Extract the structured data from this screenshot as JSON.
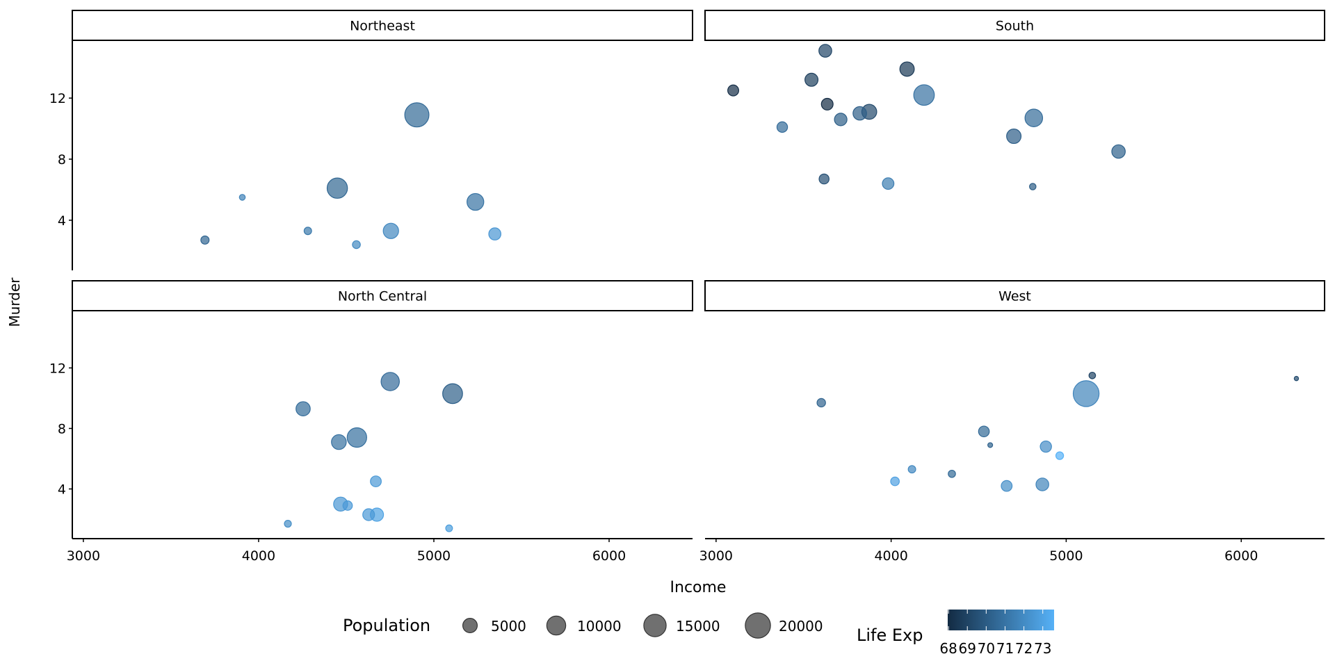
{
  "chart_data": {
    "type": "scatter",
    "xlabel": "Income",
    "ylabel": "Murder",
    "xlim": [
      2937,
      6476
    ],
    "ylim": [
      0.715,
      15.785
    ],
    "x_ticks": [
      3000,
      4000,
      5000,
      6000
    ],
    "y_ticks": [
      4,
      8,
      12
    ],
    "grid": false,
    "legend_position": "bottom",
    "alpha": 0.7,
    "size_legend": {
      "title": "Population",
      "breaks": [
        5000,
        10000,
        15000,
        20000
      ],
      "range": [
        365,
        21198
      ]
    },
    "color_legend": {
      "title": "Life Exp",
      "breaks": [
        68,
        69,
        70,
        71,
        72,
        73
      ],
      "range": [
        67.96,
        73.6
      ],
      "low": "#132B43",
      "high": "#56B1F7"
    },
    "facets": [
      {
        "name": "Northeast",
        "points": [
          {
            "income": 5348,
            "murder": 3.1,
            "population": 3100,
            "life_exp": 72.48
          },
          {
            "income": 3694,
            "murder": 2.7,
            "population": 1058,
            "life_exp": 70.39
          },
          {
            "income": 4755,
            "murder": 3.3,
            "population": 5814,
            "life_exp": 71.83
          },
          {
            "income": 4281,
            "murder": 3.3,
            "population": 812,
            "life_exp": 71.23
          },
          {
            "income": 5237,
            "murder": 5.2,
            "population": 7333,
            "life_exp": 70.93
          },
          {
            "income": 4903,
            "murder": 10.9,
            "population": 18076,
            "life_exp": 70.55
          },
          {
            "income": 4449,
            "murder": 6.1,
            "population": 11860,
            "life_exp": 70.43
          },
          {
            "income": 4558,
            "murder": 2.4,
            "population": 931,
            "life_exp": 71.9
          },
          {
            "income": 3907,
            "murder": 5.5,
            "population": 472,
            "life_exp": 71.64
          }
        ]
      },
      {
        "name": "South",
        "points": [
          {
            "income": 3624,
            "murder": 15.1,
            "population": 3615,
            "life_exp": 69.05
          },
          {
            "income": 3378,
            "murder": 10.1,
            "population": 2110,
            "life_exp": 70.66
          },
          {
            "income": 4809,
            "murder": 6.2,
            "population": 579,
            "life_exp": 70.06
          },
          {
            "income": 4815,
            "murder": 10.7,
            "population": 8277,
            "life_exp": 70.66
          },
          {
            "income": 4091,
            "murder": 13.9,
            "population": 4931,
            "life_exp": 68.54
          },
          {
            "income": 3712,
            "murder": 10.6,
            "population": 3387,
            "life_exp": 70.1
          },
          {
            "income": 3545,
            "murder": 13.2,
            "population": 3806,
            "life_exp": 68.76
          },
          {
            "income": 5299,
            "murder": 8.5,
            "population": 4122,
            "life_exp": 70.22
          },
          {
            "income": 3098,
            "murder": 12.5,
            "population": 2341,
            "life_exp": 68.09
          },
          {
            "income": 3875,
            "murder": 11.1,
            "population": 5441,
            "life_exp": 69.21
          },
          {
            "income": 3983,
            "murder": 6.4,
            "population": 2715,
            "life_exp": 71.42
          },
          {
            "income": 3635,
            "murder": 11.6,
            "population": 2816,
            "life_exp": 67.96
          },
          {
            "income": 3821,
            "murder": 11.0,
            "population": 4173,
            "life_exp": 70.11
          },
          {
            "income": 4188,
            "murder": 12.2,
            "population": 12237,
            "life_exp": 70.9
          },
          {
            "income": 4701,
            "murder": 9.5,
            "population": 4981,
            "life_exp": 70.08
          },
          {
            "income": 3617,
            "murder": 6.7,
            "population": 1799,
            "life_exp": 69.48
          }
        ]
      },
      {
        "name": "North Central",
        "points": [
          {
            "income": 5107,
            "murder": 10.3,
            "population": 11197,
            "life_exp": 70.14
          },
          {
            "income": 4458,
            "murder": 7.1,
            "population": 5313,
            "life_exp": 70.88
          },
          {
            "income": 4628,
            "murder": 2.3,
            "population": 2861,
            "life_exp": 72.56
          },
          {
            "income": 4669,
            "murder": 4.5,
            "population": 2280,
            "life_exp": 72.58
          },
          {
            "income": 4751,
            "murder": 11.1,
            "population": 9111,
            "life_exp": 70.63
          },
          {
            "income": 4675,
            "murder": 2.3,
            "population": 3921,
            "life_exp": 72.96
          },
          {
            "income": 4254,
            "murder": 9.3,
            "population": 4767,
            "life_exp": 70.69
          },
          {
            "income": 4508,
            "murder": 2.9,
            "population": 1544,
            "life_exp": 72.6
          },
          {
            "income": 5087,
            "murder": 1.4,
            "population": 637,
            "life_exp": 72.78
          },
          {
            "income": 4561,
            "murder": 7.4,
            "population": 10735,
            "life_exp": 70.82
          },
          {
            "income": 4167,
            "murder": 1.7,
            "population": 681,
            "life_exp": 72.08
          },
          {
            "income": 4468,
            "murder": 3.0,
            "population": 4589,
            "life_exp": 72.48
          }
        ]
      },
      {
        "name": "West",
        "points": [
          {
            "income": 6315,
            "murder": 11.3,
            "population": 365,
            "life_exp": 69.31
          },
          {
            "income": 4530,
            "murder": 7.8,
            "population": 2212,
            "life_exp": 70.55
          },
          {
            "income": 5114,
            "murder": 10.3,
            "population": 21198,
            "life_exp": 71.71
          },
          {
            "income": 4884,
            "murder": 6.8,
            "population": 2541,
            "life_exp": 72.06
          },
          {
            "income": 4963,
            "murder": 6.2,
            "population": 868,
            "life_exp": 73.6
          },
          {
            "income": 4119,
            "murder": 5.3,
            "population": 813,
            "life_exp": 71.87
          },
          {
            "income": 4347,
            "murder": 5.0,
            "population": 746,
            "life_exp": 70.56
          },
          {
            "income": 5149,
            "murder": 11.5,
            "population": 590,
            "life_exp": 69.03
          },
          {
            "income": 3601,
            "murder": 9.7,
            "population": 1144,
            "life_exp": 70.32
          },
          {
            "income": 4660,
            "murder": 4.2,
            "population": 2284,
            "life_exp": 72.13
          },
          {
            "income": 4022,
            "murder": 4.5,
            "population": 1203,
            "life_exp": 72.9
          },
          {
            "income": 4864,
            "murder": 4.3,
            "population": 3559,
            "life_exp": 71.72
          },
          {
            "income": 4566,
            "murder": 6.9,
            "population": 376,
            "life_exp": 70.29
          }
        ]
      }
    ]
  }
}
